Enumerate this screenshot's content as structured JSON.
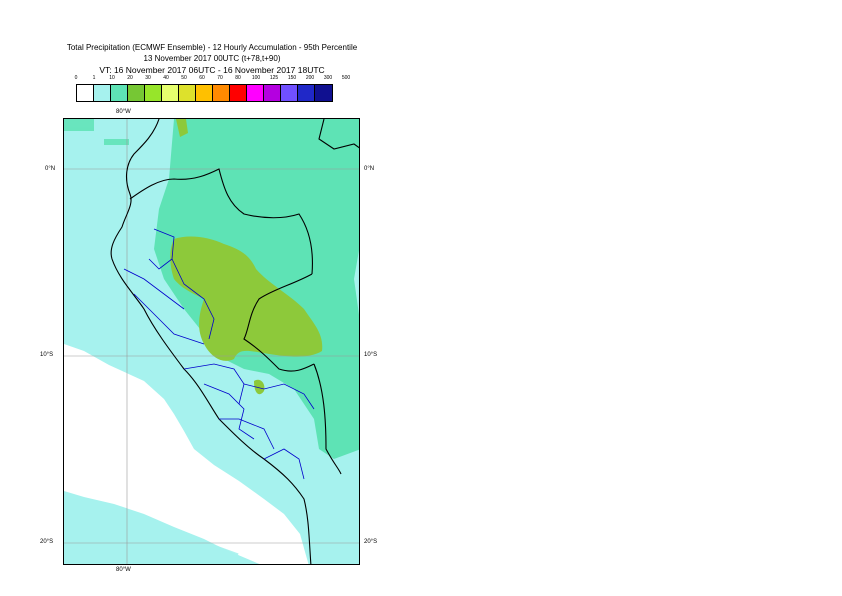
{
  "header": {
    "title_line1": "Total Precipitation (ECMWF Ensemble) - 12 Hourly Accumulation - 95th Percentile",
    "title_line2": "13 November 2017 00UTC (t+78,t+90)",
    "title_line3": "VT: 16 November 2017 06UTC - 16 November 2017 18UTC"
  },
  "color_scale": {
    "thresholds": [
      "0",
      "1",
      "10",
      "20",
      "30",
      "40",
      "50",
      "60",
      "70",
      "80",
      "100",
      "125",
      "150",
      "200",
      "300",
      "500"
    ],
    "colors": [
      "#ffffff",
      "#a6f2ee",
      "#5ee3b5",
      "#76c734",
      "#97e52a",
      "#e6ff6e",
      "#dde12c",
      "#ffc000",
      "#ff8a00",
      "#ff0000",
      "#ff00ff",
      "#b400e0",
      "#7050ff",
      "#2028c8",
      "#101090"
    ]
  },
  "map": {
    "lon_label_top": "80°W",
    "lon_label_bottom": "80°W",
    "lat_labels": [
      "0°N",
      "10°S",
      "20°S"
    ],
    "fill_colors": {
      "ocean_light": "#a6f2ee",
      "land_medium": "#5ee3b5",
      "land_heavy": "#8dc93a",
      "country_border": "#000000",
      "admin_border": "#0000cc",
      "graticule": "#9a9a9a"
    }
  }
}
